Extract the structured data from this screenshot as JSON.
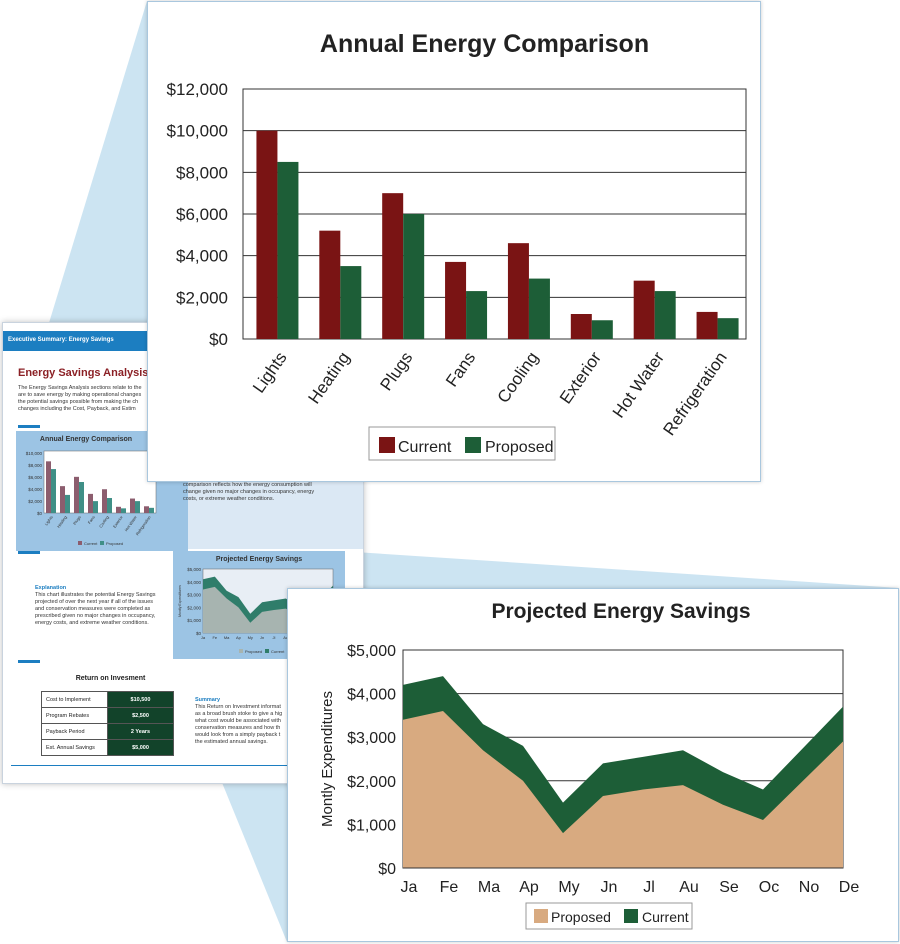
{
  "document": {
    "header": "Executive Summary: Energy Savings",
    "title": "Energy Savings Analysis",
    "intro": "The Energy Savings Analysis sections relate to the\nare to save energy by making operational changes\nthe potential savings possible from making the ch\nchanges including the Cost, Payback, and Estim",
    "comparison_text": "conservation opportunities are implemented.  The\ncomparison reflects how the energy consumption will\nchange given no major changes in occupancy, energy\ncosts, or extreme weather conditions.",
    "explanation_heading": "Explanation",
    "explanation": "This chart illustrates the potential Energy Savings\nprojected of over the next year if all of the issues\nand conservation measures were completed as\nprescribed given no major changes in occupancy,\nenergy costs, and extreme weather conditions.",
    "roi_heading": "Return on Invesment",
    "roi_table": [
      {
        "label": "Cost to Implement",
        "value": "$10,500"
      },
      {
        "label": "Program Rebates",
        "value": "$2,500"
      },
      {
        "label": "Payback Period",
        "value": "2 Years"
      },
      {
        "label": "Est. Annual Savings",
        "value": "$5,000"
      }
    ],
    "summary_heading": "Summary",
    "summary": "This Return on Investment informat\nas a broad brush stoke to give a hig\nwhat cost would be associated with\nconservation measures and how th\nwould look from a simply payback t\nthe estimated annual savings.",
    "mini_chart_1_title": "Annual Energy Comparison",
    "mini_chart_2_title": "Projected Energy Savings",
    "mini_chart_1_ticks": [
      "$10,000",
      "$8,000",
      "$6,000",
      "$4,000",
      "$2,000",
      "$0"
    ],
    "mini_chart_2_ticks": [
      "$5,000",
      "$4,000",
      "$3,000",
      "$2,000",
      "$1,000",
      "$0"
    ],
    "mini_chart_2_axis": "Montly Expenditures",
    "mini_chart_2_months": [
      "Ja",
      "Fe",
      "Ma",
      "Ap",
      "My",
      "Jn",
      "Jl",
      "Au"
    ],
    "mini_legend_1": [
      "Current",
      "Proposed"
    ],
    "mini_legend_2": [
      "Proposed",
      "Current"
    ]
  },
  "colors": {
    "current_bar": "#7a1414",
    "proposed_bar": "#1d5e37",
    "area_proposed": "#d8aa80",
    "area_current": "#1d5e37",
    "accent_blue": "#1c7ec1",
    "callout_blue": "#c7e1f1"
  },
  "chart_data": [
    {
      "type": "bar",
      "title": "Annual  Energy Comparison",
      "categories": [
        "Lights",
        "Heating",
        "Plugs",
        "Fans",
        "Cooling",
        "Exterior",
        "Hot Water",
        "Refrigeration"
      ],
      "series": [
        {
          "name": "Current",
          "values": [
            10000,
            5200,
            7000,
            3700,
            4600,
            1200,
            2800,
            1300
          ]
        },
        {
          "name": "Proposed",
          "values": [
            8500,
            3500,
            6000,
            2300,
            2900,
            900,
            2300,
            1000
          ]
        }
      ],
      "ylim": [
        0,
        12000
      ],
      "yticks": [
        0,
        2000,
        4000,
        6000,
        8000,
        10000,
        12000
      ],
      "ytick_labels": [
        "$0",
        "$2,000",
        "$4,000",
        "$6,000",
        "$8,000",
        "$10,000",
        "$12,000"
      ],
      "xlabel": "",
      "ylabel": "",
      "legend": "bottom-center",
      "grid": true
    },
    {
      "type": "area",
      "title": "Projected Energy Savings",
      "categories": [
        "Ja",
        "Fe",
        "Ma",
        "Ap",
        "My",
        "Jn",
        "Jl",
        "Au",
        "Se",
        "Oc",
        "No",
        "De"
      ],
      "series": [
        {
          "name": "Proposed",
          "values": [
            3400,
            3600,
            2700,
            2000,
            800,
            1650,
            1800,
            1900,
            1450,
            1100,
            2000,
            2900
          ]
        },
        {
          "name": "Current",
          "values": [
            4200,
            4400,
            3300,
            2800,
            1500,
            2400,
            2550,
            2700,
            2200,
            1800,
            2750,
            3700
          ]
        }
      ],
      "ylim": [
        0,
        5000
      ],
      "yticks": [
        0,
        1000,
        2000,
        3000,
        4000,
        5000
      ],
      "ytick_labels": [
        "$0",
        "$1,000",
        "$2,000",
        "$3,000",
        "$4,000",
        "$5,000"
      ],
      "xlabel": "",
      "ylabel": "Montly Expenditures",
      "legend": "bottom-center",
      "grid": true
    }
  ]
}
